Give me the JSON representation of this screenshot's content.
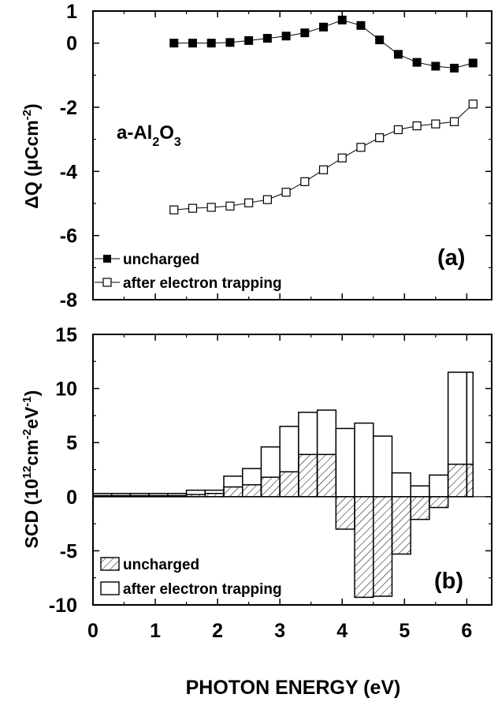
{
  "colors": {
    "axis": "#000000",
    "background": "#ffffff",
    "marker_filled": "#000000",
    "marker_open": "#ffffff"
  },
  "xlabel": "PHOTON ENERGY (eV)",
  "x_ticks": [
    "0",
    "1",
    "2",
    "3",
    "4",
    "5",
    "6"
  ],
  "chart_data": [
    {
      "type": "line",
      "panel_label": "(a)",
      "annotation": {
        "text": "a-Al",
        "sub1": "2",
        "mid": "O",
        "sub2": "3"
      },
      "ylabel": {
        "main": "ΔQ (μCcm",
        "sup": "-2",
        "close": ")"
      },
      "xlim": [
        0,
        6.4
      ],
      "ylim": [
        -8,
        1
      ],
      "y_ticks": [
        "1",
        "0",
        "-2",
        "-4",
        "-6",
        "-8"
      ],
      "legend_position": "bottom-left",
      "x": [
        1.3,
        1.6,
        1.9,
        2.2,
        2.5,
        2.8,
        3.1,
        3.4,
        3.7,
        4.0,
        4.3,
        4.6,
        4.9,
        5.2,
        5.5,
        5.8,
        6.1
      ],
      "series": [
        {
          "name": "uncharged",
          "marker": "filled-square",
          "values": [
            0.0,
            0.0,
            0.0,
            0.02,
            0.08,
            0.15,
            0.22,
            0.32,
            0.5,
            0.72,
            0.55,
            0.1,
            -0.35,
            -0.6,
            -0.72,
            -0.78,
            -0.62
          ]
        },
        {
          "name": "after electron trapping",
          "marker": "open-square",
          "values": [
            -5.2,
            -5.15,
            -5.12,
            -5.08,
            -4.98,
            -4.88,
            -4.65,
            -4.32,
            -3.95,
            -3.58,
            -3.25,
            -2.95,
            -2.7,
            -2.58,
            -2.52,
            -2.45,
            -1.9
          ]
        }
      ]
    },
    {
      "type": "bar",
      "panel_label": "(b)",
      "ylabel": {
        "main": "SCD (10",
        "sup1": "12",
        "mid": "cm",
        "sup2": "-2",
        "mid2": "eV",
        "sup3": "-1",
        "close": ")"
      },
      "xlim": [
        0,
        6.4
      ],
      "ylim": [
        -10,
        15
      ],
      "y_ticks": [
        "15",
        "10",
        "5",
        "0",
        "-5",
        "-10"
      ],
      "legend_position": "bottom-left",
      "bins": [
        [
          0.0,
          0.3
        ],
        [
          0.3,
          0.6
        ],
        [
          0.6,
          0.9
        ],
        [
          0.9,
          1.2
        ],
        [
          1.2,
          1.5
        ],
        [
          1.5,
          1.8
        ],
        [
          1.8,
          2.1
        ],
        [
          2.1,
          2.4
        ],
        [
          2.4,
          2.7
        ],
        [
          2.7,
          3.0
        ],
        [
          3.0,
          3.3
        ],
        [
          3.3,
          3.6
        ],
        [
          3.6,
          3.9
        ],
        [
          3.9,
          4.2
        ],
        [
          4.2,
          4.5
        ],
        [
          4.5,
          4.8
        ],
        [
          4.8,
          5.1
        ],
        [
          5.1,
          5.4
        ],
        [
          5.4,
          5.7
        ],
        [
          5.7,
          6.0
        ],
        [
          6.0,
          6.1
        ]
      ],
      "series": [
        {
          "name": "uncharged",
          "fill": "hatched",
          "values": [
            0.1,
            0.1,
            0.1,
            0.1,
            0.1,
            0.2,
            0.3,
            0.9,
            1.1,
            1.8,
            2.3,
            3.9,
            3.9,
            -3.0,
            -9.3,
            -9.2,
            -5.3,
            -2.1,
            -1.0,
            3.0,
            3.0
          ]
        },
        {
          "name": "after electron trapping",
          "fill": "open",
          "values": [
            0.3,
            0.3,
            0.3,
            0.3,
            0.3,
            0.6,
            0.6,
            1.9,
            2.6,
            4.6,
            6.5,
            7.8,
            8.0,
            6.3,
            6.8,
            5.6,
            2.2,
            1.0,
            2.0,
            11.5,
            11.5
          ]
        }
      ]
    }
  ]
}
